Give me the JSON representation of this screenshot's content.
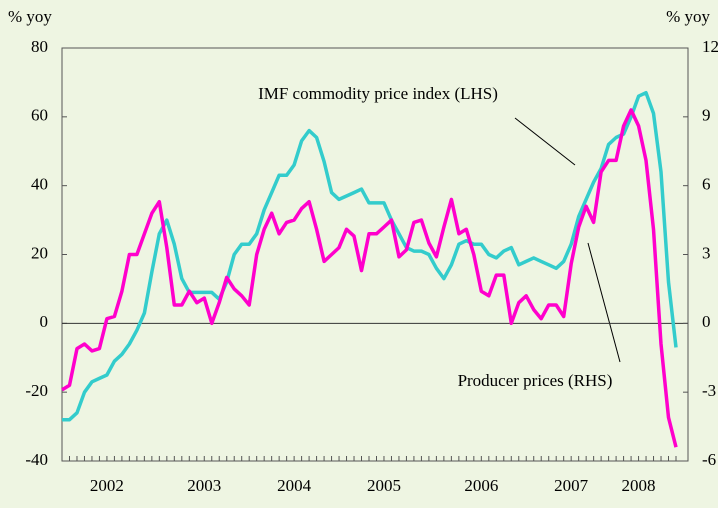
{
  "chart_data": {
    "type": "line",
    "y_label": "% yoy",
    "y2_label": "% yoy",
    "annotations": [
      "IMF commodity price index (LHS)",
      "Producer prices (RHS)"
    ],
    "categories": [
      null,
      null,
      null,
      null,
      null,
      null,
      "2002",
      null,
      null,
      null,
      null,
      null,
      null,
      null,
      null,
      null,
      null,
      null,
      null,
      "2003",
      null,
      null,
      null,
      null,
      null,
      null,
      null,
      null,
      null,
      null,
      null,
      "2004",
      null,
      null,
      null,
      null,
      null,
      null,
      null,
      null,
      null,
      null,
      null,
      "2005",
      null,
      null,
      null,
      null,
      null,
      null,
      null,
      null,
      null,
      null,
      null,
      null,
      "2006",
      null,
      null,
      null,
      null,
      null,
      null,
      null,
      null,
      null,
      null,
      null,
      "2007",
      null,
      null,
      null,
      null,
      null,
      null,
      null,
      null,
      "2008",
      null,
      null,
      null,
      null,
      null
    ],
    "series": [
      {
        "name": "IMF commodity price index (LHS)",
        "color": "#33cccc",
        "values": [
          -28,
          -28,
          -26,
          -20,
          -17,
          -16,
          -15,
          -11,
          -9,
          -6,
          -2,
          3,
          15,
          26,
          30,
          23,
          13,
          9,
          9,
          9,
          9,
          7,
          12,
          20,
          23,
          23,
          26,
          33,
          38,
          43,
          43,
          46,
          53,
          56,
          54,
          47,
          38,
          36,
          37,
          38,
          39,
          35,
          35,
          35,
          30,
          26,
          22,
          21,
          21,
          20,
          16,
          13,
          17,
          23,
          24,
          23,
          23,
          20,
          19,
          21,
          22,
          17,
          18,
          19,
          18,
          17,
          16,
          18,
          23,
          31,
          36,
          41,
          45,
          52,
          54,
          55,
          60,
          66,
          67,
          61,
          44,
          12,
          -7
        ]
      },
      {
        "name": "Producer prices (RHS)",
        "color": "#ff00cc",
        "axis": "y2",
        "values": [
          -2.9,
          -2.7,
          -1.1,
          -0.9,
          -1.2,
          -1.1,
          0.2,
          0.3,
          1.4,
          3.0,
          3.0,
          3.9,
          4.8,
          5.3,
          3.3,
          0.8,
          0.8,
          1.4,
          0.9,
          1.1,
          0,
          0.9,
          2.0,
          1.5,
          1.2,
          0.8,
          3.0,
          4.1,
          4.8,
          3.9,
          4.4,
          4.5,
          5.0,
          5.3,
          4.1,
          2.7,
          3.0,
          3.3,
          4.1,
          3.8,
          2.3,
          3.9,
          3.9,
          4.2,
          4.5,
          2.9,
          3.2,
          4.4,
          4.5,
          3.5,
          2.9,
          4.2,
          5.4,
          3.9,
          4.1,
          3.0,
          1.4,
          1.2,
          2.1,
          2.1,
          0,
          0.9,
          1.2,
          0.6,
          0.2,
          0.8,
          0.8,
          0.3,
          2.6,
          4.2,
          5.1,
          4.4,
          6.6,
          7.1,
          7.1,
          8.6,
          9.3,
          8.6,
          7.1,
          4.1,
          -0.9,
          -4.1,
          -5.4
        ]
      }
    ],
    "ylim": [
      -40,
      80
    ],
    "yticks": [
      -40,
      -20,
      0,
      20,
      40,
      60,
      80
    ],
    "y2lim": [
      -6,
      12
    ],
    "y2ticks": [
      -6,
      -3,
      0,
      3,
      6,
      9,
      12
    ]
  }
}
